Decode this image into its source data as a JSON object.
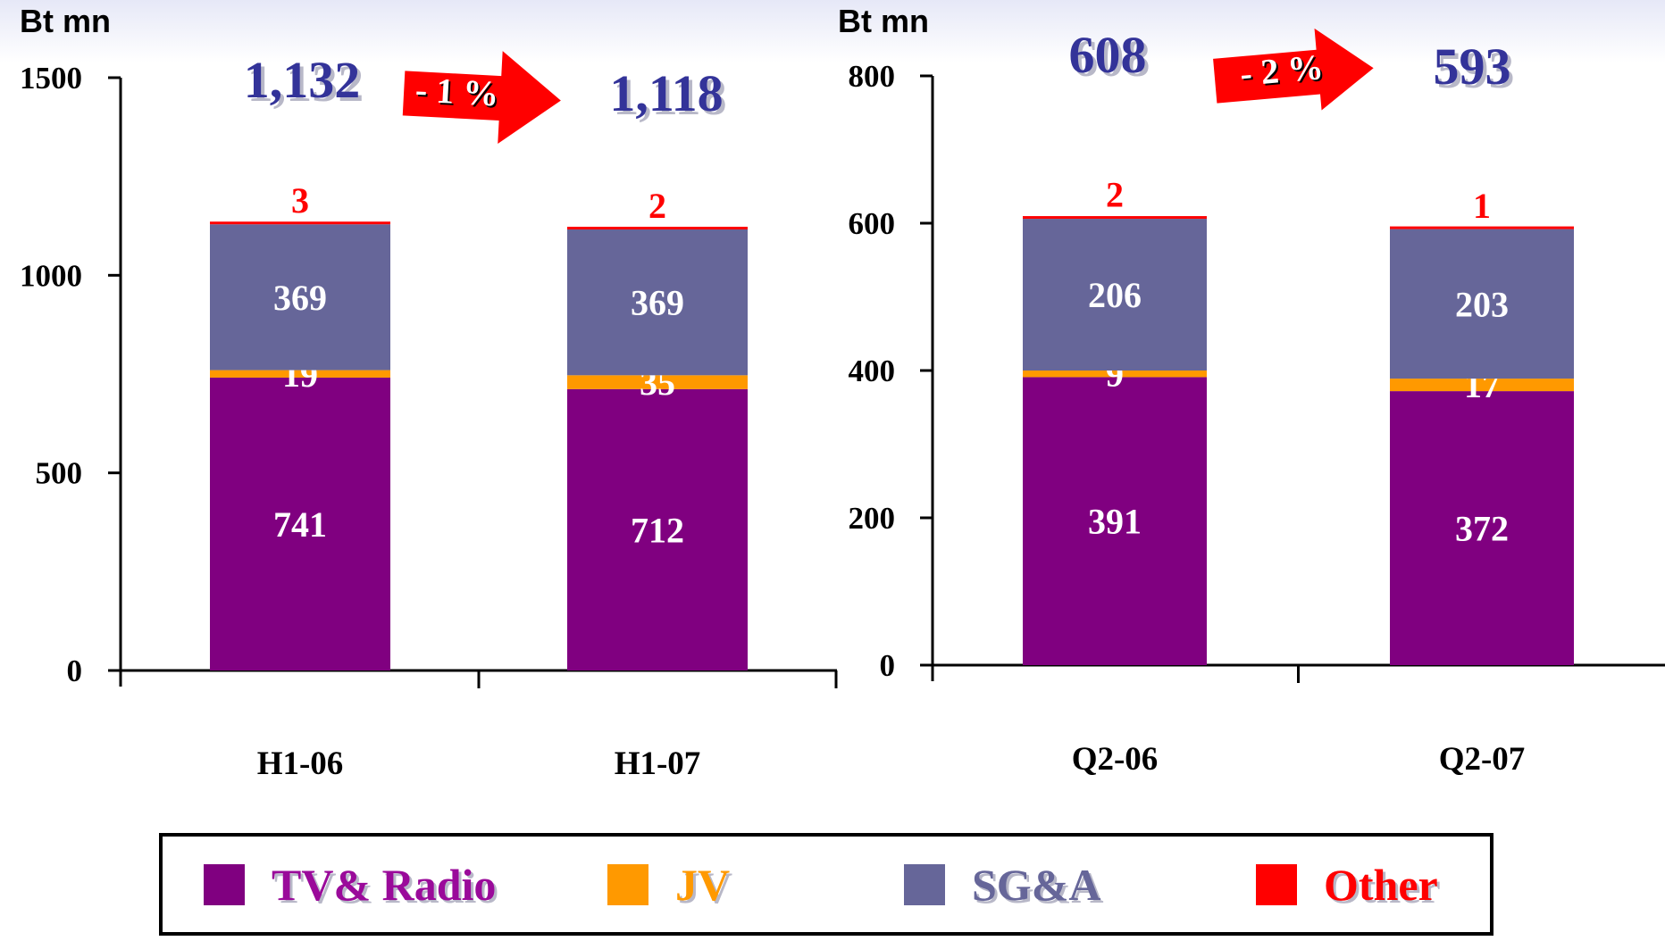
{
  "chart_data": [
    {
      "type": "bar",
      "stacked": true,
      "ylabel": "Bt mn",
      "ylim": [
        0,
        1500
      ],
      "yticks": [
        0,
        500,
        1000,
        1500
      ],
      "categories": [
        "H1-06",
        "H1-07"
      ],
      "series": [
        {
          "name": "TV& Radio",
          "values": [
            741,
            712
          ]
        },
        {
          "name": "JV",
          "values": [
            19,
            35
          ]
        },
        {
          "name": "SG&A",
          "values": [
            369,
            369
          ]
        },
        {
          "name": "Other",
          "values": [
            3,
            2
          ]
        }
      ],
      "totals": [
        "1,132",
        "1,118"
      ],
      "change": "- 1 %"
    },
    {
      "type": "bar",
      "stacked": true,
      "ylabel": "Bt mn",
      "ylim": [
        0,
        800
      ],
      "yticks": [
        0,
        200,
        400,
        600,
        800
      ],
      "categories": [
        "Q2-06",
        "Q2-07"
      ],
      "series": [
        {
          "name": "TV& Radio",
          "values": [
            391,
            372
          ]
        },
        {
          "name": "JV",
          "values": [
            9,
            17
          ]
        },
        {
          "name": "SG&A",
          "values": [
            206,
            203
          ]
        },
        {
          "name": "Other",
          "values": [
            2,
            1
          ]
        }
      ],
      "totals": [
        "608",
        "593"
      ],
      "change": "- 2 %"
    }
  ],
  "legend": {
    "items": [
      {
        "label": "TV& Radio",
        "color": "#800080",
        "text_color": "#9a0a9a"
      },
      {
        "label": "JV",
        "color": "#ff9900",
        "text_color": "#ff9900"
      },
      {
        "label": "SG&A",
        "color": "#666699",
        "text_color": "#666699"
      },
      {
        "label": "Other",
        "color": "#ff0000",
        "text_color": "#ff0000"
      }
    ]
  },
  "colors": {
    "tv_radio": "#800080",
    "jv": "#ff9900",
    "sga": "#666699",
    "other": "#ff0000",
    "totals": "#333399",
    "arrow": "#ff0000"
  }
}
